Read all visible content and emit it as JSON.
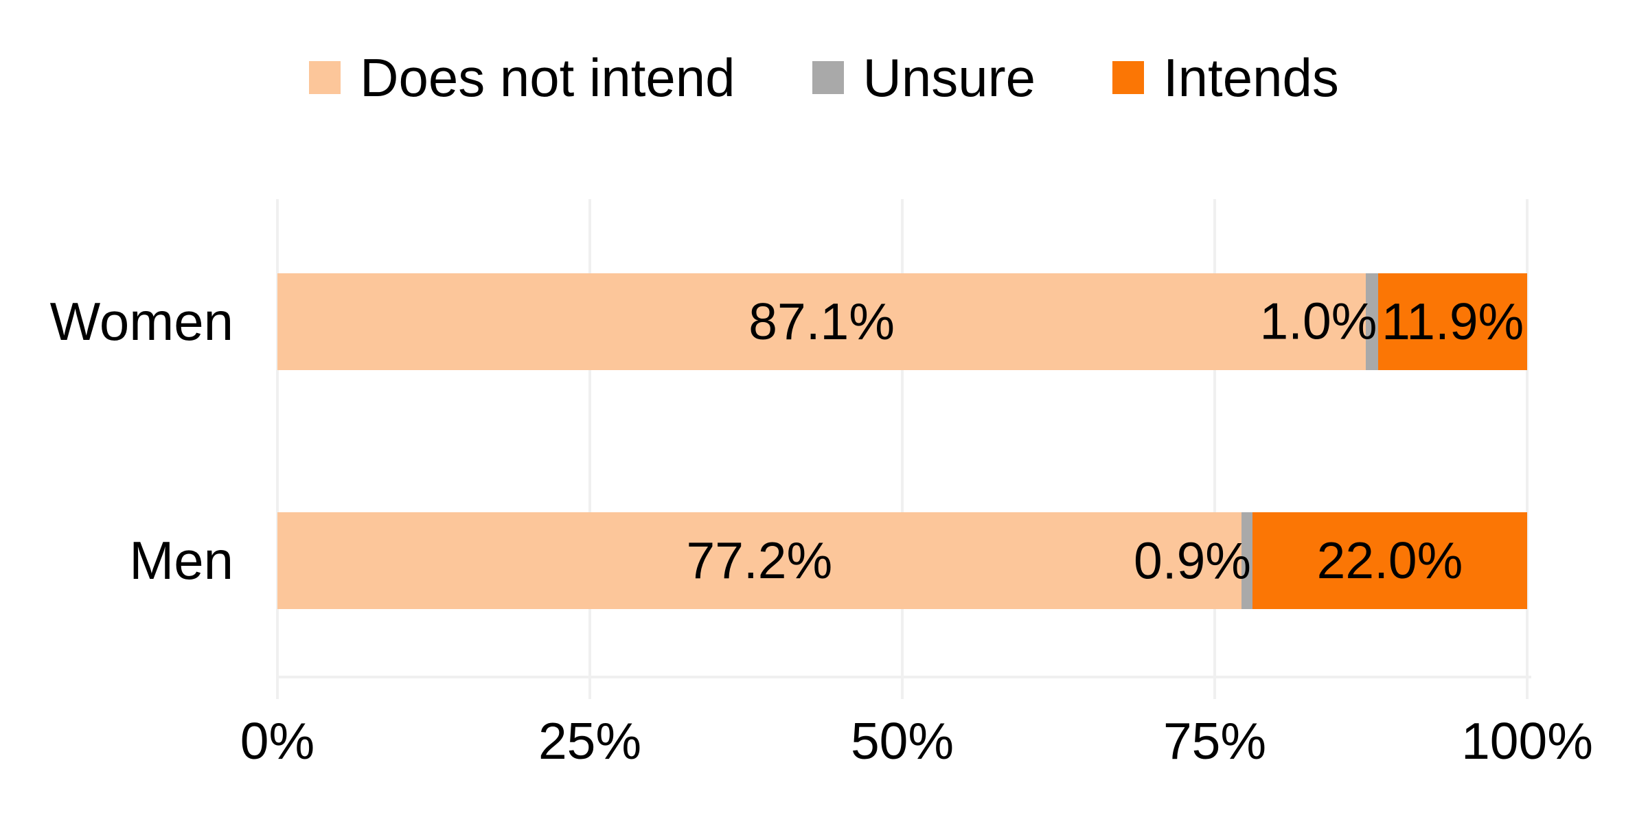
{
  "chart_data": {
    "type": "bar",
    "orientation": "horizontal",
    "stacked": true,
    "title": "",
    "xlabel": "",
    "ylabel": "",
    "categories": [
      "Women",
      "Men"
    ],
    "series": [
      {
        "name": "Does not intend",
        "color": "#FCC69A",
        "values": [
          87.1,
          77.2
        ]
      },
      {
        "name": "Unsure",
        "color": "#A9A9A9",
        "values": [
          1.0,
          0.9
        ]
      },
      {
        "name": "Intends",
        "color": "#FB7605",
        "values": [
          11.9,
          22.0
        ]
      }
    ],
    "data_labels": [
      [
        "87.1%",
        "1.0%",
        "11.9%"
      ],
      [
        "77.2%",
        "0.9%",
        "22.0%"
      ]
    ],
    "x_ticks": [
      "0%",
      "25%",
      "50%",
      "75%",
      "100%"
    ],
    "xlim": [
      0,
      100
    ],
    "grid": true,
    "legend_position": "top"
  },
  "colors": {
    "background": "#FFFFFF",
    "gridline": "#F0F0F0",
    "text": "#000000"
  }
}
